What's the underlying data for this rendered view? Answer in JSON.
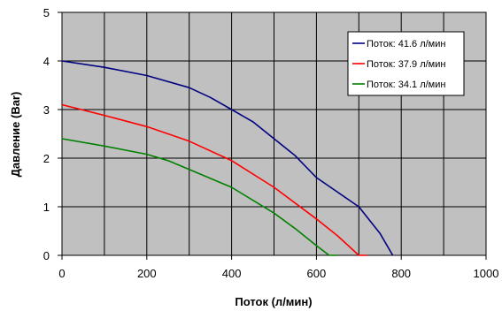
{
  "chart_data": {
    "type": "line",
    "title": "",
    "xlabel": "Поток (л/мин)",
    "ylabel": "Давление (Bar)",
    "xlim": [
      0,
      1000
    ],
    "ylim": [
      0,
      5
    ],
    "xticks": [
      0,
      200,
      400,
      600,
      800,
      1000
    ],
    "yticks": [
      0,
      1,
      2,
      3,
      4,
      5
    ],
    "xtick_labels": [
      "0",
      "200",
      "400",
      "600",
      "800",
      "1000"
    ],
    "ytick_labels": [
      "0",
      "1",
      "2",
      "3",
      "4",
      "5"
    ],
    "grid": true,
    "plot_background": "#c0c0c0",
    "legend_position": "top-right",
    "series": [
      {
        "name": "Поток: 41.6 л/мин",
        "color": "#000080",
        "points": [
          [
            0,
            4.0
          ],
          [
            100,
            3.87
          ],
          [
            200,
            3.7
          ],
          [
            300,
            3.45
          ],
          [
            350,
            3.25
          ],
          [
            400,
            3.0
          ],
          [
            450,
            2.75
          ],
          [
            500,
            2.4
          ],
          [
            550,
            2.05
          ],
          [
            600,
            1.6
          ],
          [
            650,
            1.3
          ],
          [
            700,
            1.0
          ],
          [
            750,
            0.45
          ],
          [
            780,
            0.0
          ]
        ]
      },
      {
        "name": "Поток: 37.9 л/мин",
        "color": "#ff0000",
        "points": [
          [
            0,
            3.1
          ],
          [
            100,
            2.88
          ],
          [
            200,
            2.65
          ],
          [
            300,
            2.35
          ],
          [
            400,
            1.95
          ],
          [
            500,
            1.4
          ],
          [
            600,
            0.75
          ],
          [
            650,
            0.4
          ],
          [
            700,
            0.0
          ],
          [
            720,
            0.0
          ]
        ]
      },
      {
        "name": "Поток: 34.1 л/мин",
        "color": "#008000",
        "points": [
          [
            0,
            2.4
          ],
          [
            100,
            2.25
          ],
          [
            200,
            2.08
          ],
          [
            250,
            1.95
          ],
          [
            300,
            1.77
          ],
          [
            400,
            1.4
          ],
          [
            500,
            0.87
          ],
          [
            550,
            0.55
          ],
          [
            600,
            0.2
          ],
          [
            630,
            0.0
          ],
          [
            650,
            0.0
          ]
        ]
      }
    ]
  }
}
